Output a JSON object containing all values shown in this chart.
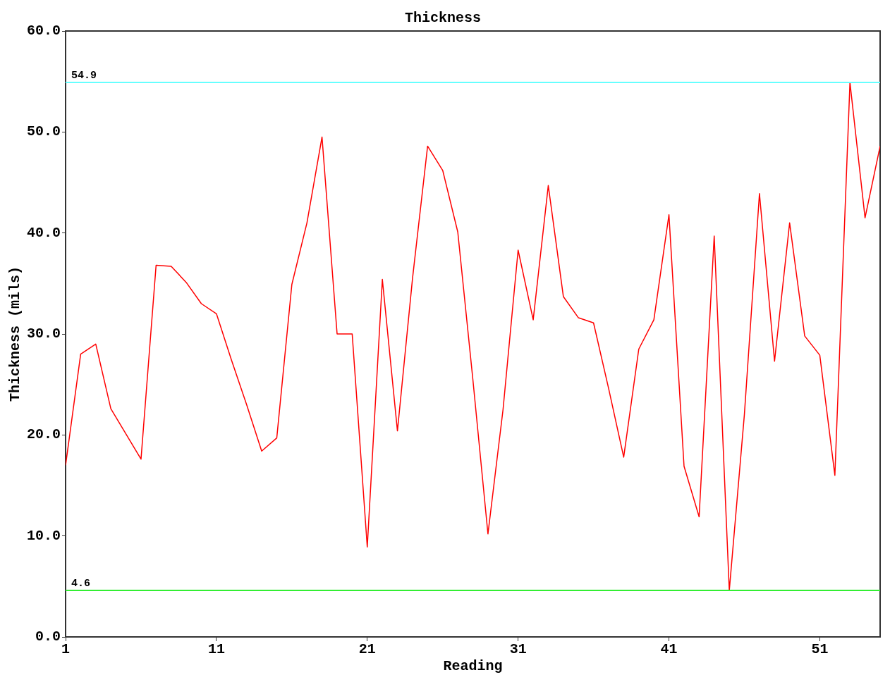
{
  "chart_data": {
    "type": "line",
    "title": "Thickness",
    "xlabel": "Reading",
    "ylabel": "Thickness (mils)",
    "x": [
      1,
      2,
      3,
      4,
      5,
      6,
      7,
      8,
      9,
      10,
      11,
      12,
      13,
      14,
      15,
      16,
      17,
      18,
      19,
      20,
      21,
      22,
      23,
      24,
      25,
      26,
      27,
      28,
      29,
      30,
      31,
      32,
      33,
      34,
      35,
      36,
      37,
      38,
      39,
      40,
      41,
      42,
      43,
      44,
      45,
      46,
      47,
      48,
      49,
      50,
      51,
      52,
      53,
      54,
      55
    ],
    "series": [
      {
        "color": "#ff0000",
        "values": [
          17.0,
          28.0,
          29.0,
          22.6,
          20.1,
          17.6,
          36.8,
          36.7,
          35.1,
          33.0,
          32.0,
          27.4,
          23.0,
          18.4,
          19.7,
          34.9,
          41.0,
          49.5,
          30.0,
          30.0,
          8.9,
          35.4,
          20.4,
          35.5,
          48.6,
          46.2,
          40.1,
          25.5,
          10.2,
          22.5,
          38.3,
          31.4,
          44.7,
          33.7,
          31.6,
          31.1,
          24.6,
          17.8,
          28.5,
          31.4,
          41.8,
          16.9,
          11.9,
          39.7,
          4.6,
          22.0,
          43.9,
          27.3,
          41.0,
          29.8,
          27.9,
          16.0,
          54.9,
          41.5,
          48.6
        ]
      }
    ],
    "xlim": [
      1,
      55
    ],
    "xticks": [
      1,
      11,
      21,
      31,
      41,
      51
    ],
    "ylim": [
      0,
      60
    ],
    "yticks": [
      {
        "value": 0,
        "label": "0.0"
      },
      {
        "value": 10,
        "label": "10.0"
      },
      {
        "value": 20,
        "label": "20.0"
      },
      {
        "value": 30,
        "label": "30.0"
      },
      {
        "value": 40,
        "label": "40.0"
      },
      {
        "value": 50,
        "label": "50.0"
      },
      {
        "value": 60,
        "label": "60.0"
      }
    ],
    "ref_lines": [
      {
        "axis": "y",
        "value": 54.9,
        "label": "54.9",
        "color": "#66ffff"
      },
      {
        "axis": "y",
        "value": 4.6,
        "label": "4.6",
        "color": "#33ee33"
      }
    ],
    "grid": false,
    "legend": false,
    "marker": "none",
    "line_style": "solid"
  }
}
